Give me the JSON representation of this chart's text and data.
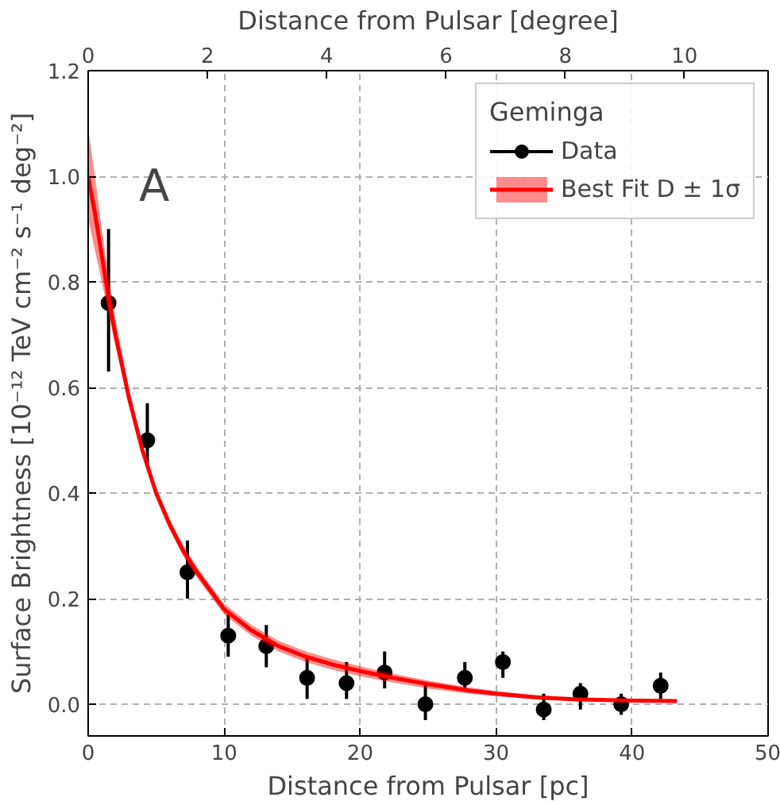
{
  "chart_data": {
    "type": "scatter",
    "xlabel": "Distance from Pulsar [pc]",
    "ylabel": "Surface Brightness [10⁻¹² TeV cm⁻² s⁻¹ deg⁻²]",
    "x2label": "Distance from Pulsar [degree]",
    "legend_title": "Geminga",
    "annotations": [
      "A"
    ],
    "xlim": [
      0,
      50
    ],
    "xticks": [
      0,
      10,
      20,
      30,
      40,
      50
    ],
    "x2lim": [
      0,
      11.4
    ],
    "x2ticks": [
      0,
      2,
      4,
      6,
      8,
      10
    ],
    "ylim": [
      -0.06,
      1.2
    ],
    "yticks": [
      {
        "value": 0,
        "label": "0.0"
      },
      {
        "value": 0.2,
        "label": "0.2"
      },
      {
        "value": 0.4,
        "label": "0.4"
      },
      {
        "value": 0.6,
        "label": "0.6"
      },
      {
        "value": 0.8,
        "label": "0.8"
      },
      {
        "value": 1.0,
        "label": "1.0"
      },
      {
        "value": 1.2,
        "label": "1.2"
      }
    ],
    "grid": true,
    "legend": "top right",
    "series": [
      {
        "name": "Data",
        "marker": "circle",
        "color": "#000000",
        "x": [
          1.5,
          4.35,
          7.3,
          10.3,
          13.1,
          16.1,
          19.0,
          21.8,
          24.8,
          27.7,
          30.5,
          33.5,
          36.2,
          39.2,
          42.1
        ],
        "values": [
          0.76,
          0.5,
          0.25,
          0.13,
          0.11,
          0.05,
          0.04,
          0.06,
          0.0,
          0.05,
          0.08,
          -0.01,
          0.02,
          0.0,
          0.035
        ],
        "errors": [
          [
            0.63,
            0.9
          ],
          [
            0.45,
            0.57
          ],
          [
            0.2,
            0.31
          ],
          [
            0.09,
            0.17
          ],
          [
            0.07,
            0.15
          ],
          [
            0.01,
            0.09
          ],
          [
            0.01,
            0.08
          ],
          [
            0.03,
            0.1
          ],
          [
            -0.03,
            0.04
          ],
          [
            0.03,
            0.08
          ],
          [
            0.05,
            0.1
          ],
          [
            -0.03,
            0.02
          ],
          [
            -0.01,
            0.04
          ],
          [
            -0.02,
            0.02
          ],
          [
            0.01,
            0.06
          ]
        ]
      },
      {
        "name": "Best Fit D ± 1σ",
        "type": "line",
        "color": "#ff0000",
        "line_style": "solid",
        "marker": "none",
        "x": [
          0,
          0.5,
          1,
          1.5,
          2,
          3,
          4,
          5,
          6,
          7,
          8,
          10,
          12,
          14,
          16,
          18,
          20,
          22,
          25,
          28,
          30,
          33,
          36,
          40,
          43.3
        ],
        "values": [
          1.0,
          0.93,
          0.85,
          0.77,
          0.7,
          0.58,
          0.48,
          0.4,
          0.34,
          0.29,
          0.25,
          0.18,
          0.14,
          0.11,
          0.09,
          0.075,
          0.063,
          0.052,
          0.038,
          0.026,
          0.02,
          0.013,
          0.009,
          0.007,
          0.006
        ],
        "lower": [
          0.92,
          0.86,
          0.8,
          0.74,
          0.68,
          0.57,
          0.47,
          0.39,
          0.33,
          0.28,
          0.24,
          0.17,
          0.13,
          0.1,
          0.08,
          0.065,
          0.053,
          0.043,
          0.03,
          0.02,
          0.015,
          0.009,
          0.006,
          0.005,
          0.004
        ],
        "upper": [
          1.09,
          1.0,
          0.9,
          0.81,
          0.73,
          0.6,
          0.49,
          0.41,
          0.35,
          0.3,
          0.26,
          0.19,
          0.15,
          0.12,
          0.1,
          0.085,
          0.072,
          0.06,
          0.045,
          0.032,
          0.025,
          0.017,
          0.012,
          0.009,
          0.008
        ]
      }
    ]
  }
}
